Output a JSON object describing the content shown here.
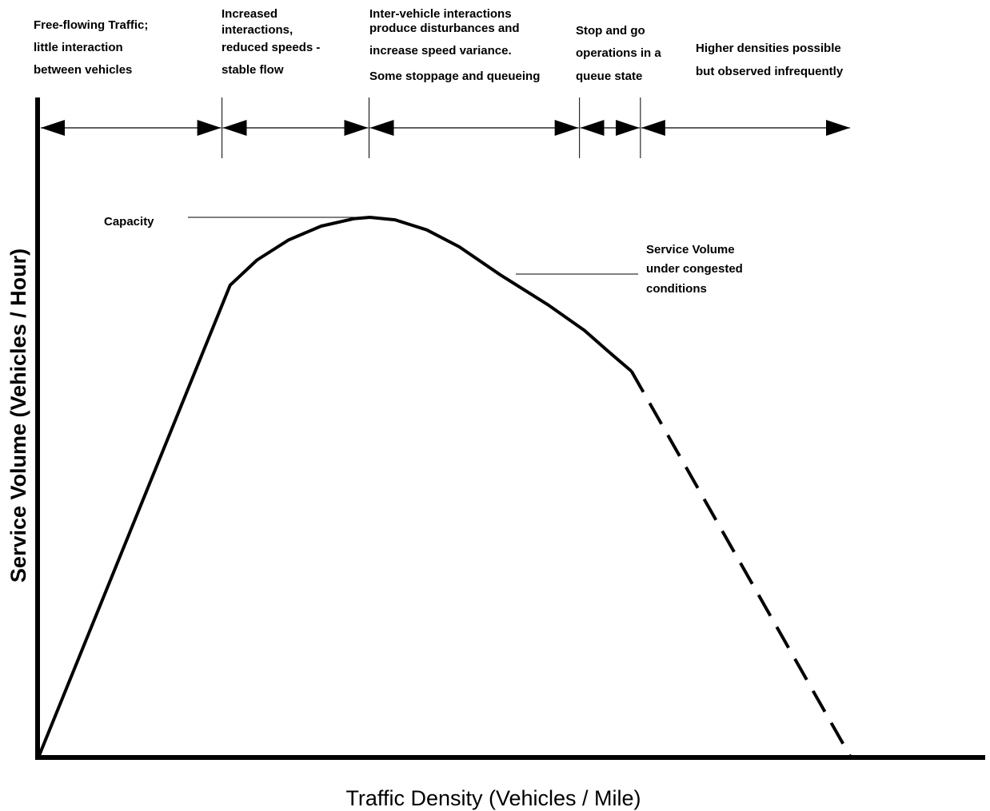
{
  "chart_data": {
    "type": "line",
    "title": "",
    "xlabel": "Traffic Density (Vehicles / Mile)",
    "ylabel": "Service Volume (Vehicles / Hour)",
    "x_tick_labels": [],
    "y_tick_labels": [],
    "grid": false,
    "legend": "none",
    "xlim": [
      0,
      100
    ],
    "ylim": [
      0,
      100
    ],
    "series": [
      {
        "style": "solid",
        "points": [
          {
            "x": 0,
            "y": 0
          },
          {
            "x": 23.6,
            "y": 75.2
          },
          {
            "x": 26.9,
            "y": 79.2
          },
          {
            "x": 30.8,
            "y": 82.4
          },
          {
            "x": 34.8,
            "y": 84.6
          },
          {
            "x": 38.9,
            "y": 85.8
          },
          {
            "x": 40.8,
            "y": 86.0
          },
          {
            "x": 43.9,
            "y": 85.6
          },
          {
            "x": 47.8,
            "y": 84.0
          },
          {
            "x": 51.8,
            "y": 81.3
          },
          {
            "x": 56.9,
            "y": 76.8
          },
          {
            "x": 62.7,
            "y": 72.1
          },
          {
            "x": 67.2,
            "y": 68.0
          },
          {
            "x": 70.1,
            "y": 64.7
          },
          {
            "x": 73.0,
            "y": 61.5
          }
        ]
      },
      {
        "style": "dashed",
        "points": [
          {
            "x": 73.0,
            "y": 61.5
          },
          {
            "x": 100,
            "y": 0
          }
        ]
      }
    ],
    "regions": [
      {
        "label_lines": [
          "Free-flowing Traffic;",
          "little interaction",
          "between vehicles"
        ],
        "x_start": 0,
        "x_end": 22.6
      },
      {
        "label_lines": [
          "Increased",
          "interactions,",
          "reduced speeds -",
          "stable flow"
        ],
        "x_start": 22.6,
        "x_end": 40.7
      },
      {
        "label_lines": [
          "Inter-vehicle interactions",
          "produce disturbances and",
          "increase speed variance.",
          "Some stoppage and queueing"
        ],
        "x_start": 40.7,
        "x_end": 66.6
      },
      {
        "label_lines": [
          "Stop and go",
          "operations in a",
          "queue state"
        ],
        "x_start": 66.6,
        "x_end": 74.1
      },
      {
        "label_lines": [
          "Higher densities possible",
          "but observed infrequently"
        ],
        "x_start": 74.1,
        "x_end": 100
      }
    ],
    "annotations": [
      {
        "label_lines": [
          "Capacity"
        ],
        "x": 40.8,
        "y": 86.0
      },
      {
        "label_lines": [
          "Service Volume",
          "under congested",
          "conditions"
        ],
        "x": 58.8,
        "y": 77.2
      }
    ]
  }
}
